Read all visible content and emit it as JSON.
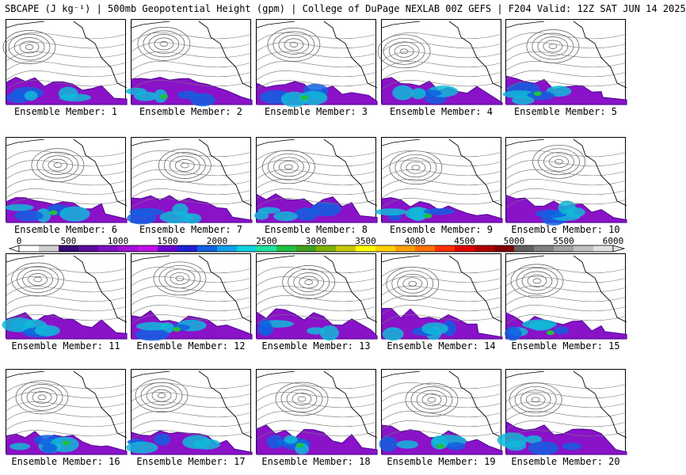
{
  "title": "SBCAPE (J kg⁻¹) | 500mb Geopotential Height (gpm) | College of DuPage NEXLAB 00Z GEFS | F204 Valid: 12Z SAT JUN 14 2025",
  "colorbar": {
    "ticks": [
      "0",
      "500",
      "1000",
      "1500",
      "2000",
      "2500",
      "3000",
      "3500",
      "4000",
      "4500",
      "5000",
      "5500",
      "6000"
    ],
    "range": [
      0,
      6000
    ],
    "colors": [
      "#ffffff",
      "#cfcfcf",
      "#3a0a78",
      "#5a0c9c",
      "#7d10c0",
      "#a010d8",
      "#c010e8",
      "#6a00d0",
      "#2020d0",
      "#1060e0",
      "#10a0e8",
      "#10d0e0",
      "#20e0a0",
      "#20c040",
      "#40a020",
      "#80b000",
      "#c8c800",
      "#ffff00",
      "#ffd000",
      "#ffa000",
      "#ff7000",
      "#ff3000",
      "#e00000",
      "#b00000",
      "#800000",
      "#606060",
      "#808080",
      "#a0a0a0",
      "#c0c0c0",
      "#e0e0e0"
    ]
  },
  "panels": [
    {
      "label": "Ensemble Member: 1"
    },
    {
      "label": "Ensemble Member: 2"
    },
    {
      "label": "Ensemble Member: 3"
    },
    {
      "label": "Ensemble Member: 4"
    },
    {
      "label": "Ensemble Member: 5"
    },
    {
      "label": "Ensemble Member: 6"
    },
    {
      "label": "Ensemble Member: 7"
    },
    {
      "label": "Ensemble Member: 8"
    },
    {
      "label": "Ensemble Member: 9"
    },
    {
      "label": "Ensemble Member: 10"
    },
    {
      "label": "Ensemble Member: 11"
    },
    {
      "label": "Ensemble Member: 12"
    },
    {
      "label": "Ensemble Member: 13"
    },
    {
      "label": "Ensemble Member: 14"
    },
    {
      "label": "Ensemble Member: 15"
    },
    {
      "label": "Ensemble Member: 16"
    },
    {
      "label": "Ensemble Member: 17"
    },
    {
      "label": "Ensemble Member: 18"
    },
    {
      "label": "Ensemble Member: 19"
    },
    {
      "label": "Ensemble Member: 20"
    }
  ]
}
